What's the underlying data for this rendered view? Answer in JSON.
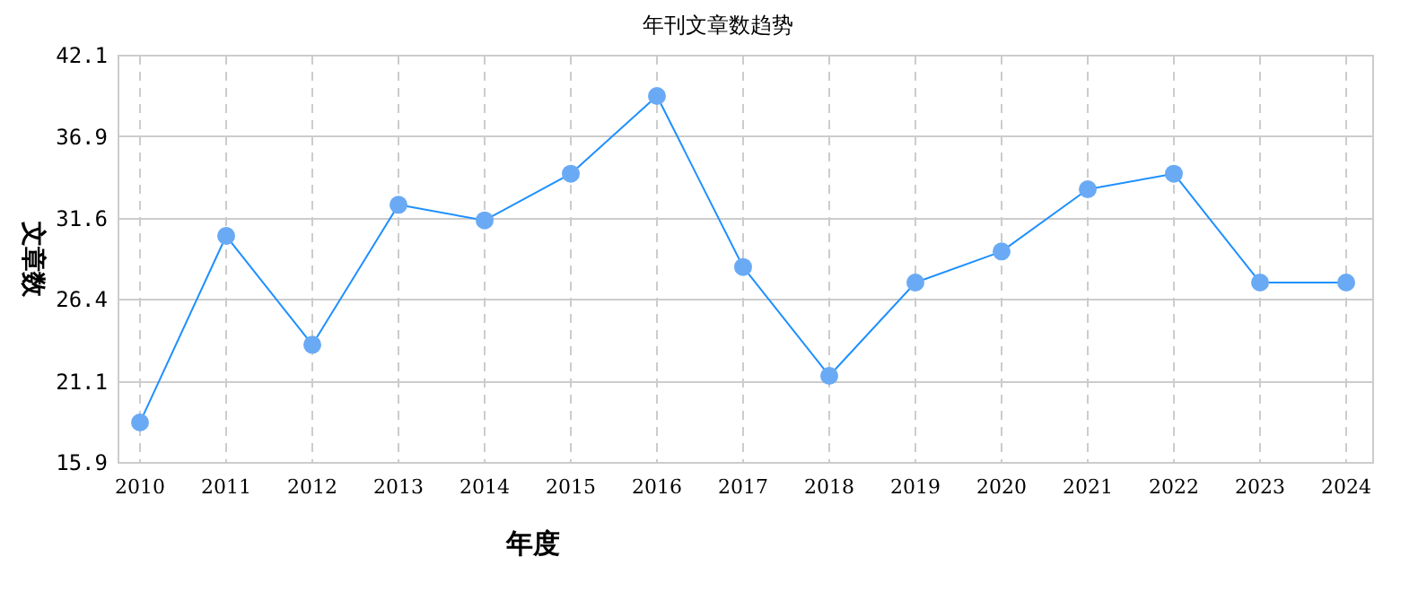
{
  "chart_data": {
    "type": "line",
    "title": "年刊文章数趋势",
    "xlabel": "年度",
    "ylabel": "文章数",
    "categories": [
      "2010",
      "2011",
      "2012",
      "2013",
      "2014",
      "2015",
      "2016",
      "2017",
      "2018",
      "2019",
      "2020",
      "2021",
      "2022",
      "2023",
      "2024"
    ],
    "series": [
      {
        "color": "#1e90ff",
        "values": [
          18.5,
          30.5,
          23.5,
          32.5,
          31.5,
          34.5,
          39.5,
          28.5,
          21.5,
          27.5,
          29.5,
          33.5,
          34.5,
          27.5,
          27.5
        ]
      }
    ],
    "ylim": [
      15.9,
      42.1
    ],
    "yticks": [
      15.9,
      21.1,
      26.4,
      31.6,
      36.9,
      42.1
    ],
    "grid": true,
    "marker": "circle",
    "line_style": "solid"
  }
}
